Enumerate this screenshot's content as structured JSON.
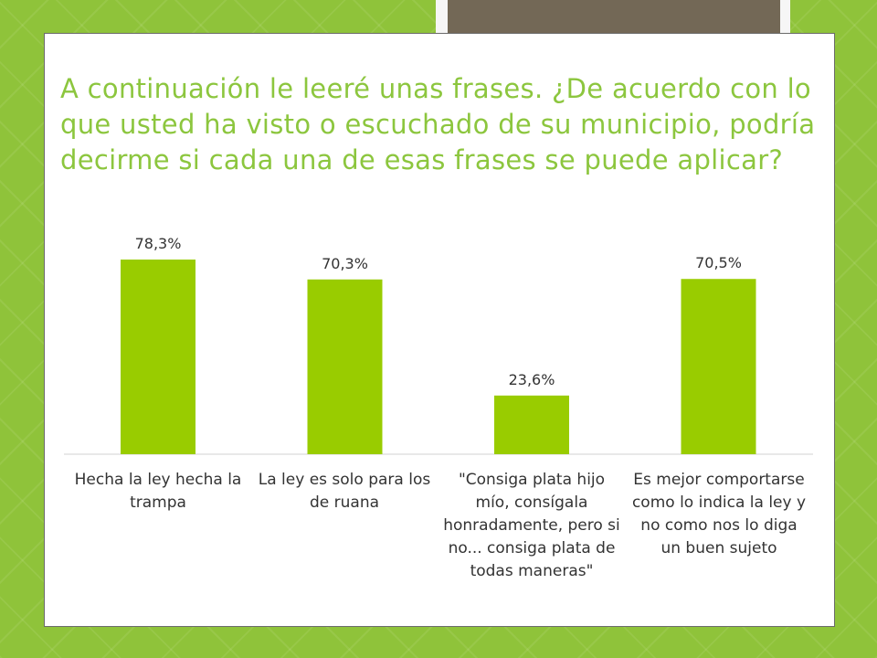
{
  "slide": {
    "title": "A continuación le leeré unas frases. ¿De acuerdo con lo que usted ha visto o escuchado de su municipio, podría decirme si cada una de esas frases se puede aplicar?"
  },
  "colors": {
    "background": "#8fc33a",
    "bar": "#99cc00",
    "title": "#8cc63e",
    "tab": "#736856"
  },
  "chart_data": {
    "type": "bar",
    "categories": [
      "Hecha la ley hecha la trampa",
      "La ley es solo para los de ruana",
      "\"Consiga plata hijo mío, consígala honradamente, pero si no... consiga plata de todas maneras\"",
      "Es mejor comportarse como lo indica la ley y no como nos lo diga un buen sujeto"
    ],
    "values": [
      78.3,
      70.3,
      23.6,
      70.5
    ],
    "data_labels": [
      "78,3%",
      "70,3%",
      "23,6%",
      "70,5%"
    ],
    "ylim": [
      0,
      100
    ],
    "grid": false,
    "legend": "none"
  }
}
